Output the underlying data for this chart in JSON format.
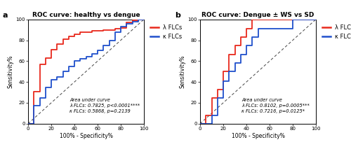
{
  "panel_a": {
    "title": "ROC curve: healthy vs dengue",
    "lambda_x": [
      0,
      5,
      5,
      10,
      10,
      15,
      15,
      20,
      20,
      25,
      25,
      30,
      30,
      35,
      35,
      40,
      40,
      45,
      45,
      50,
      50,
      55,
      55,
      60,
      60,
      65,
      65,
      70,
      70,
      75,
      75,
      80,
      80,
      85,
      85,
      90,
      90,
      95,
      95,
      100
    ],
    "lambda_y": [
      0,
      0,
      31,
      31,
      57,
      57,
      63,
      63,
      71,
      71,
      76,
      76,
      81,
      81,
      84,
      84,
      86,
      86,
      88,
      88,
      88,
      88,
      89,
      89,
      89,
      89,
      90,
      90,
      90,
      90,
      91,
      91,
      92,
      92,
      97,
      97,
      99,
      99,
      100,
      100
    ],
    "kappa_x": [
      0,
      5,
      5,
      10,
      10,
      15,
      15,
      20,
      20,
      25,
      25,
      30,
      30,
      35,
      35,
      40,
      40,
      45,
      45,
      50,
      50,
      55,
      55,
      60,
      60,
      65,
      65,
      70,
      70,
      75,
      75,
      80,
      80,
      85,
      85,
      90,
      90,
      95,
      95,
      100
    ],
    "kappa_y": [
      0,
      0,
      17,
      17,
      25,
      25,
      35,
      35,
      42,
      42,
      45,
      45,
      50,
      50,
      55,
      55,
      60,
      60,
      62,
      62,
      64,
      64,
      67,
      67,
      70,
      70,
      75,
      75,
      80,
      80,
      88,
      88,
      93,
      93,
      96,
      96,
      98,
      98,
      100,
      100
    ],
    "auc_text": "Area under curve\nλ FLCs: 0.7825, p<0.0001****\nκ FLCs: 0.5868, p=0.2139",
    "xlabel": "100% - Specificity%",
    "ylabel": "Sensitivity%",
    "label": "a"
  },
  "panel_b": {
    "title": "ROC curve: Dengue ± WS vs SD",
    "lambda_x": [
      0,
      5,
      5,
      10,
      10,
      15,
      15,
      20,
      20,
      25,
      25,
      30,
      30,
      35,
      35,
      40,
      40,
      45,
      45,
      50,
      50,
      55,
      55,
      60,
      60,
      65,
      65,
      70,
      70,
      75,
      75,
      80,
      80,
      85,
      85,
      90,
      90,
      95,
      95,
      100
    ],
    "lambda_y": [
      0,
      0,
      8,
      8,
      25,
      25,
      33,
      33,
      50,
      50,
      66,
      66,
      75,
      75,
      83,
      83,
      91,
      91,
      100,
      100,
      100,
      100,
      100,
      100,
      100,
      100,
      100,
      100,
      100,
      100,
      100,
      100,
      100,
      100,
      100,
      100,
      100,
      100,
      100,
      100
    ],
    "kappa_x": [
      0,
      5,
      5,
      10,
      10,
      15,
      15,
      20,
      20,
      25,
      25,
      30,
      30,
      35,
      35,
      40,
      40,
      45,
      45,
      50,
      50,
      55,
      55,
      60,
      60,
      65,
      65,
      70,
      70,
      75,
      75,
      80,
      80,
      85,
      85,
      90,
      90,
      95,
      95,
      100
    ],
    "kappa_y": [
      0,
      0,
      0,
      0,
      8,
      8,
      25,
      25,
      41,
      41,
      50,
      50,
      58,
      58,
      66,
      66,
      75,
      75,
      83,
      83,
      91,
      91,
      91,
      91,
      91,
      91,
      91,
      91,
      91,
      91,
      91,
      91,
      100,
      100,
      100,
      100,
      100,
      100,
      100,
      100
    ],
    "auc_text": "Area under curve\nλ FLCs: 0.8102, p=0.0005***\nκ FLCs: 0.7216, p=0.0125*",
    "xlabel": "100% - Specificity%",
    "ylabel": "Sensitivity%",
    "label": "b"
  },
  "lambda_color": "#e8291c",
  "kappa_color": "#1f4fcc",
  "diag_color": "#444444",
  "legend_lambda": "λ FLCs",
  "legend_kappa": "κ FLCs",
  "xticks": [
    0,
    20,
    40,
    60,
    80,
    100
  ],
  "yticks": [
    0,
    20,
    40,
    60,
    80,
    100
  ],
  "line_width": 1.3,
  "annotation_fontsize": 4.8,
  "title_fontsize": 6.5,
  "axis_label_fontsize": 5.5,
  "tick_fontsize": 5.0,
  "legend_fontsize": 6.0,
  "panel_label_fontsize": 8.0
}
